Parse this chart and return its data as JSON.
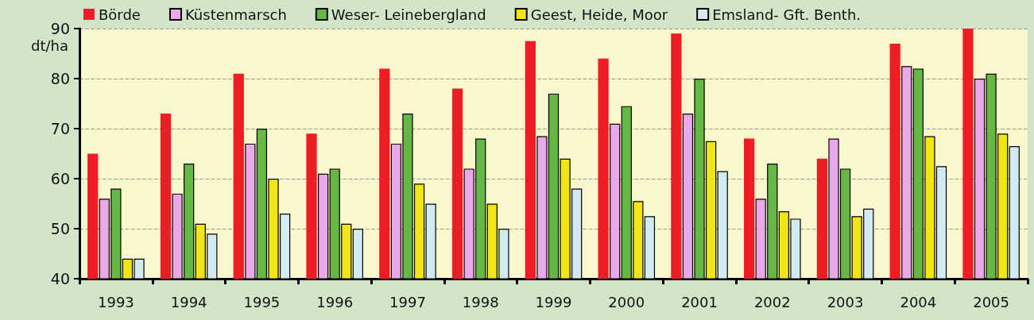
{
  "chart_data": {
    "type": "bar",
    "ylabel": "dt/ha",
    "categories": [
      "1993",
      "1994",
      "1995",
      "1996",
      "1997",
      "1998",
      "1999",
      "2000",
      "2001",
      "2002",
      "2003",
      "2004",
      "2005"
    ],
    "series": [
      {
        "name": "Börde",
        "color": "#ee1c25",
        "values": [
          65,
          73,
          81,
          69,
          82,
          78,
          87.5,
          84,
          89,
          68,
          64,
          87,
          90
        ]
      },
      {
        "name": "Küstenmarsch",
        "color": "#e9a8e9",
        "values": [
          56,
          57,
          67,
          61,
          67,
          62,
          68.5,
          71,
          73,
          56,
          68,
          82.5,
          80
        ]
      },
      {
        "name": "Weser- Leinebergland",
        "color": "#66b844",
        "values": [
          58,
          63,
          70,
          62,
          73,
          68,
          77,
          74.5,
          80,
          63,
          62,
          82,
          81
        ]
      },
      {
        "name": "Geest, Heide, Moor",
        "color": "#f2e516",
        "values": [
          44,
          51,
          60,
          51,
          59,
          55,
          64,
          55.5,
          67.5,
          53.5,
          52.5,
          68.5,
          69
        ]
      },
      {
        "name": "Emsland- Gft. Benth.",
        "color": "#d2eaf2",
        "values": [
          44,
          49,
          53,
          50,
          55,
          50,
          58,
          52.5,
          61.5,
          52,
          54,
          62.5,
          66.5
        ]
      }
    ],
    "ylim": [
      40,
      90
    ],
    "yticks": [
      40,
      50,
      60,
      70,
      80,
      90
    ],
    "grid": "y",
    "legend": "top left"
  }
}
